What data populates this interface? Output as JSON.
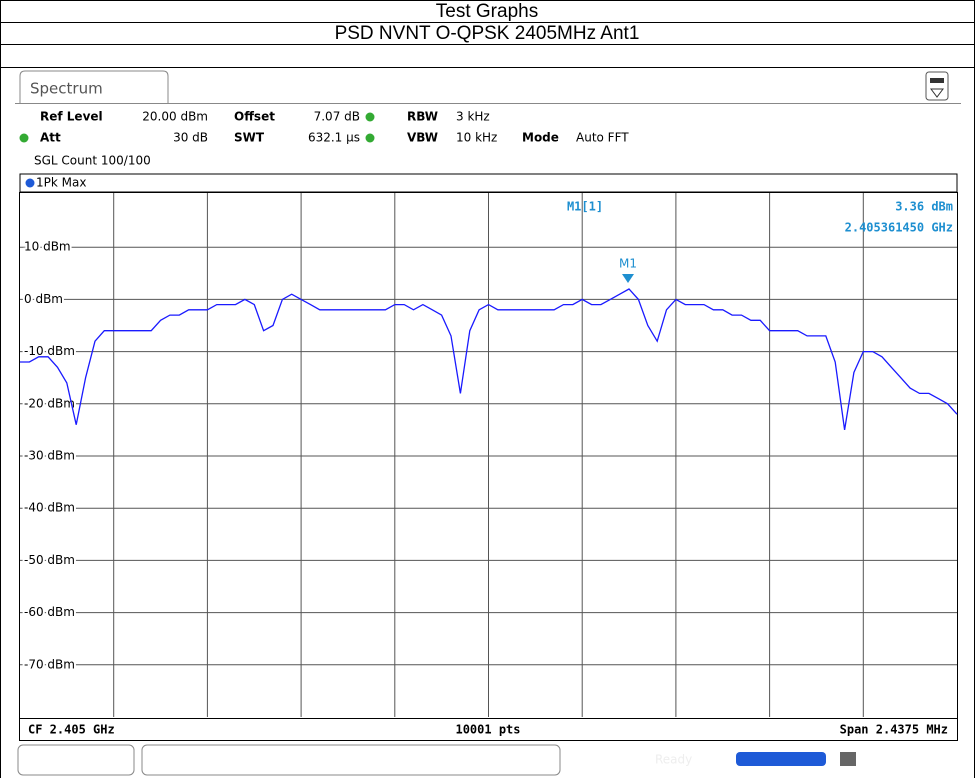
{
  "header": {
    "title": "Test Graphs",
    "subtitle": "PSD NVNT O-QPSK 2405MHz Ant1"
  },
  "instrument": {
    "tab": "Spectrum",
    "settings": [
      [
        "Ref Level",
        "20.00 dBm",
        "Offset",
        "7.07 dB",
        "RBW",
        "3 kHz"
      ],
      [
        "Att",
        "30 dB",
        "SWT",
        "632.1 µs",
        "VBW",
        "10 kHz",
        "Mode",
        "Auto FFT"
      ]
    ],
    "count": "SGL Count 100/100",
    "trace": "1Pk Max",
    "footer": {
      "left": "CF 2.405 GHz",
      "center": "10001 pts",
      "right": "Span 2.4375 MHz"
    },
    "status": "Ready"
  },
  "chart_data": {
    "type": "line",
    "ylim": [
      -80,
      20
    ],
    "yticks": [
      {
        "value": 10,
        "label": "10 dBm"
      },
      {
        "value": 0,
        "label": "0 dBm"
      },
      {
        "value": -10,
        "label": "-10 dBm"
      },
      {
        "value": -20,
        "label": "-20 dBm"
      },
      {
        "value": -30,
        "label": "-30 dBm"
      },
      {
        "value": -40,
        "label": "-40 dBm"
      },
      {
        "value": -50,
        "label": "-50 dBm"
      },
      {
        "value": -60,
        "label": "-60 dBm"
      },
      {
        "value": -70,
        "label": "-70 dBm"
      }
    ],
    "grid": true,
    "marker": {
      "label": "M1",
      "title": "M1[1]",
      "value": "3.36 dBm",
      "freq": "2.405361450 GHz"
    },
    "series": [
      {
        "name": "1Pk Max",
        "color": "#1a1aff",
        "values": [
          -12,
          -12,
          -11,
          -11,
          -13,
          -16,
          -24,
          -15,
          -8,
          -6,
          -6,
          -6,
          -6,
          -6,
          -6,
          -4,
          -3,
          -3,
          -2,
          -2,
          -2,
          -1,
          -1,
          -1,
          0,
          -1,
          -6,
          -5,
          0,
          1,
          0,
          -1,
          -2,
          -2,
          -2,
          -2,
          -2,
          -2,
          -2,
          -2,
          -1,
          -1,
          -2,
          -1,
          -2,
          -3,
          -7,
          -18,
          -6,
          -2,
          -1,
          -2,
          -2,
          -2,
          -2,
          -2,
          -2,
          -2,
          -1,
          -1,
          0,
          -1,
          -1,
          0,
          1,
          2,
          0,
          -5,
          -8,
          -2,
          0,
          -1,
          -1,
          -1,
          -2,
          -2,
          -3,
          -3,
          -4,
          -4,
          -6,
          -6,
          -6,
          -6,
          -7,
          -7,
          -7,
          -12,
          -25,
          -14,
          -10,
          -10,
          -11,
          -13,
          -15,
          -17,
          -18,
          -18,
          -19,
          -20,
          -22
        ]
      }
    ]
  }
}
